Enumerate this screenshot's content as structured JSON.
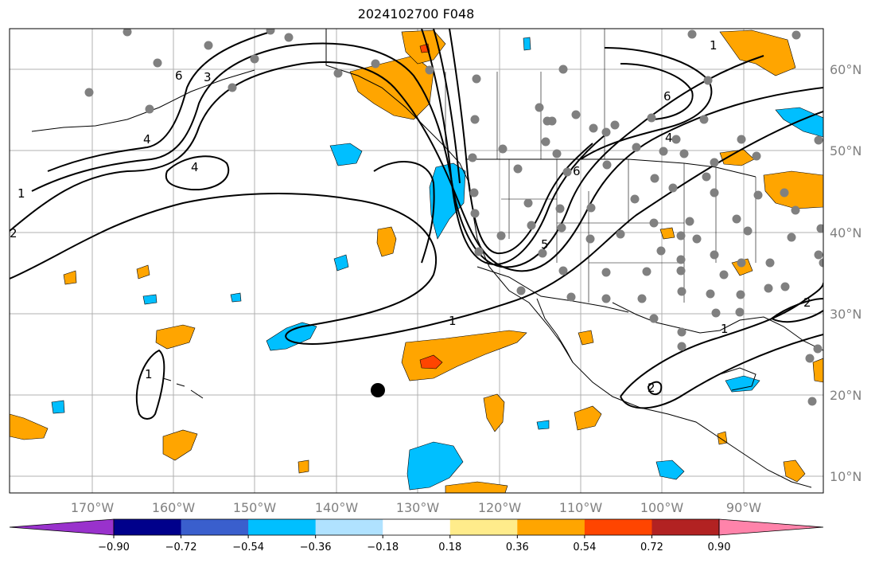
{
  "title": "2024102700 F048",
  "colors": {
    "ocean": "#ffffff",
    "grid": "#b0b0b0",
    "coast": "#000000",
    "stations": "#808080",
    "marker": "#000000"
  },
  "lon_labels": [
    "170°W",
    "160°W",
    "150°W",
    "140°W",
    "130°W",
    "120°W",
    "110°W",
    "100°W",
    "90°W"
  ],
  "lat_labels": [
    "60°N",
    "50°N",
    "40°N",
    "30°N",
    "20°N",
    "10°N"
  ],
  "contour_labels": [
    "1",
    "2",
    "3",
    "4",
    "5",
    "6"
  ],
  "colorbar": {
    "colors": [
      "#9932cc",
      "#00008b",
      "#3a5fcd",
      "#00bfff",
      "#b0e2ff",
      "#ffffff",
      "#ffec8b",
      "#ffa500",
      "#ff4500",
      "#b22222",
      "#ff83aa"
    ],
    "tick_labels": [
      "−0.90",
      "−0.72",
      "−0.54",
      "−0.36",
      "−0.18",
      "0.18",
      "0.36",
      "0.54",
      "0.72",
      "0.90"
    ]
  }
}
